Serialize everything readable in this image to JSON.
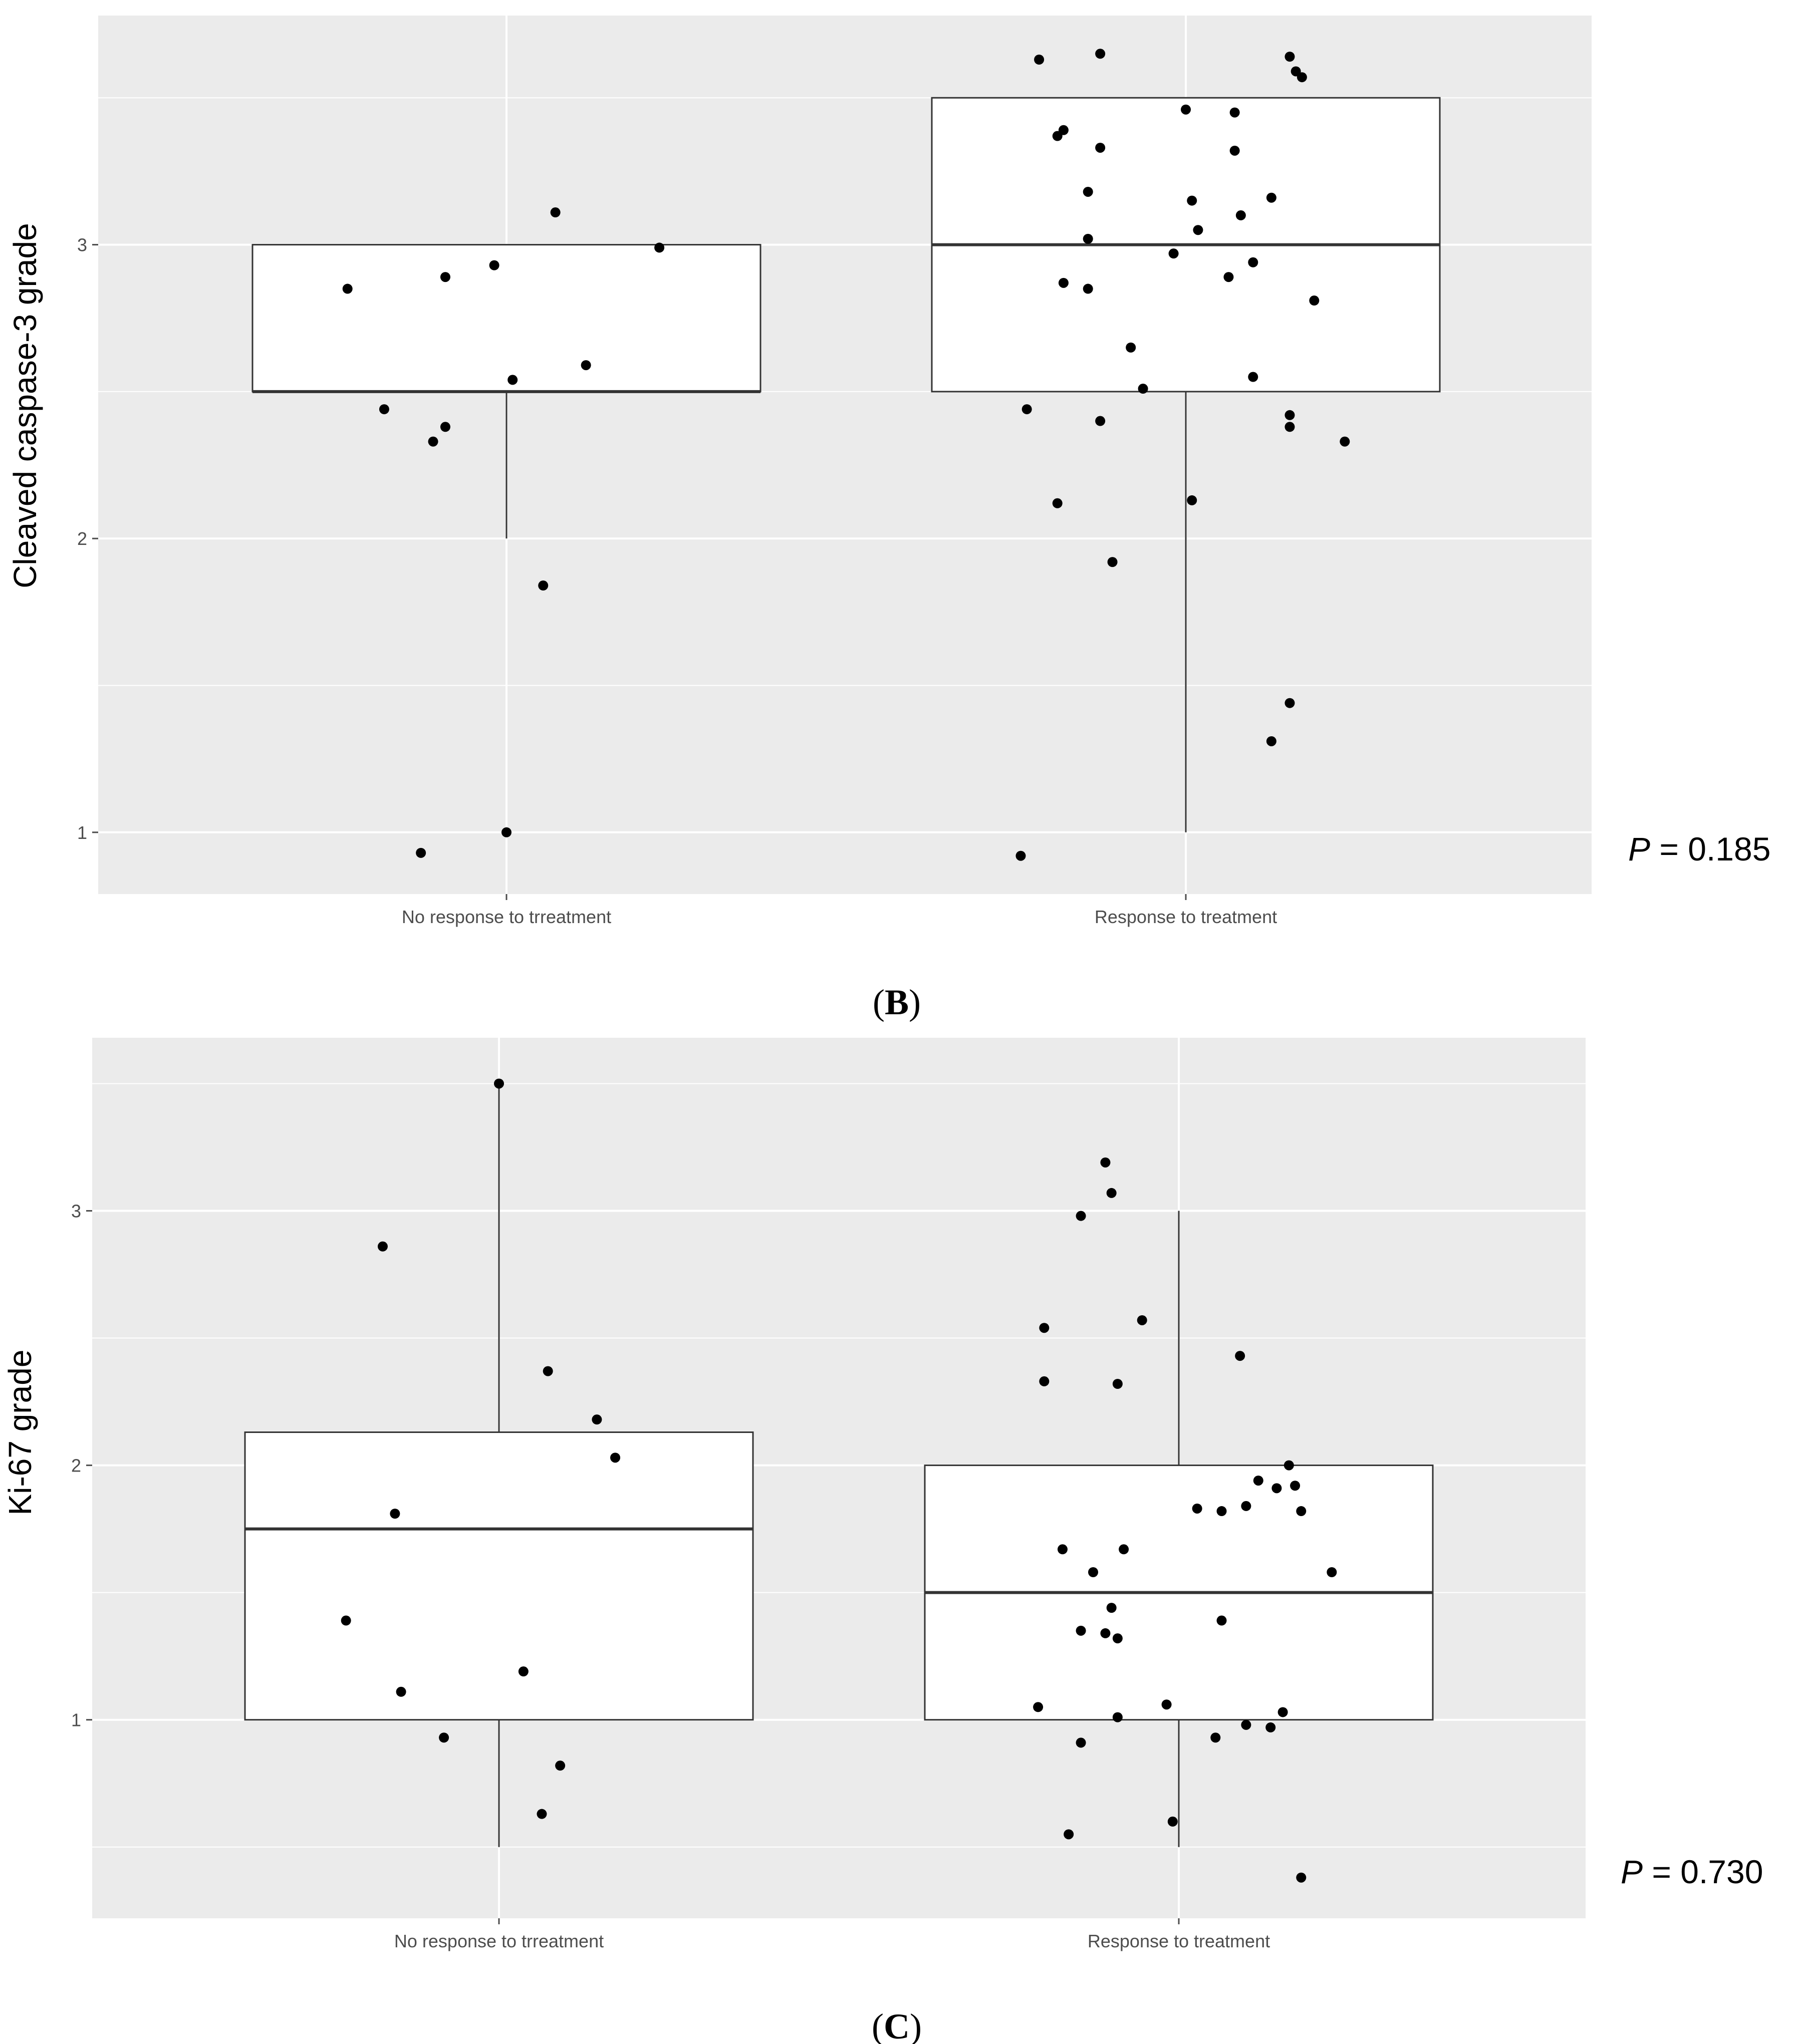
{
  "chart_data": [
    {
      "type": "box",
      "panel_label": "B",
      "ylabel": "Cleaved caspase-3 grade",
      "categories": [
        "No response to trreatment",
        "Response to treatment"
      ],
      "y_ticks": [
        "1",
        "2",
        "3"
      ],
      "ylim": [
        0.79,
        3.78
      ],
      "p_label": "P",
      "p_value": "= 0.185",
      "series": [
        {
          "name": "No response to trreatment",
          "box": {
            "min": 2.0,
            "q1": 2.5,
            "median": 2.5,
            "q3": 3.0,
            "max": 3.0
          },
          "points": [
            {
              "dx": -0.26,
              "y": 2.85
            },
            {
              "dx": -0.1,
              "y": 2.89
            },
            {
              "dx": -0.02,
              "y": 2.93
            },
            {
              "dx": 0.08,
              "y": 3.11
            },
            {
              "dx": 0.25,
              "y": 2.99
            },
            {
              "dx": 0.13,
              "y": 2.59
            },
            {
              "dx": 0.01,
              "y": 2.54
            },
            {
              "dx": -0.2,
              "y": 2.44
            },
            {
              "dx": -0.1,
              "y": 2.38
            },
            {
              "dx": -0.12,
              "y": 2.33
            },
            {
              "dx": 0.06,
              "y": 1.84
            },
            {
              "dx": 0.0,
              "y": 1.0
            },
            {
              "dx": -0.14,
              "y": 0.93
            }
          ]
        },
        {
          "name": "Response to treatment",
          "box": {
            "min": 1.0,
            "q1": 2.5,
            "median": 3.0,
            "q3": 3.5,
            "max": 3.5
          },
          "points": [
            {
              "dx": -0.24,
              "y": 3.63
            },
            {
              "dx": -0.14,
              "y": 3.65
            },
            {
              "dx": 0.17,
              "y": 3.64
            },
            {
              "dx": 0.18,
              "y": 3.59
            },
            {
              "dx": 0.19,
              "y": 3.57
            },
            {
              "dx": 0.0,
              "y": 3.46
            },
            {
              "dx": 0.08,
              "y": 3.45
            },
            {
              "dx": -0.21,
              "y": 3.37
            },
            {
              "dx": -0.2,
              "y": 3.39
            },
            {
              "dx": -0.14,
              "y": 3.33
            },
            {
              "dx": 0.08,
              "y": 3.32
            },
            {
              "dx": -0.16,
              "y": 3.18
            },
            {
              "dx": 0.01,
              "y": 3.15
            },
            {
              "dx": 0.14,
              "y": 3.16
            },
            {
              "dx": 0.09,
              "y": 3.1
            },
            {
              "dx": 0.02,
              "y": 3.05
            },
            {
              "dx": -0.16,
              "y": 3.02
            },
            {
              "dx": -0.02,
              "y": 2.97
            },
            {
              "dx": 0.11,
              "y": 2.94
            },
            {
              "dx": 0.07,
              "y": 2.89
            },
            {
              "dx": -0.2,
              "y": 2.87
            },
            {
              "dx": -0.16,
              "y": 2.85
            },
            {
              "dx": 0.21,
              "y": 2.81
            },
            {
              "dx": -0.09,
              "y": 2.65
            },
            {
              "dx": 0.11,
              "y": 2.55
            },
            {
              "dx": -0.07,
              "y": 2.51
            },
            {
              "dx": -0.26,
              "y": 2.44
            },
            {
              "dx": -0.14,
              "y": 2.4
            },
            {
              "dx": 0.17,
              "y": 2.42
            },
            {
              "dx": 0.17,
              "y": 2.38
            },
            {
              "dx": 0.26,
              "y": 2.33
            },
            {
              "dx": -0.21,
              "y": 2.12
            },
            {
              "dx": 0.01,
              "y": 2.13
            },
            {
              "dx": -0.12,
              "y": 1.92
            },
            {
              "dx": 0.17,
              "y": 1.44
            },
            {
              "dx": 0.14,
              "y": 1.31
            },
            {
              "dx": -0.27,
              "y": 0.92
            }
          ]
        }
      ]
    },
    {
      "type": "box",
      "panel_label": "C",
      "ylabel": "Ki-67 grade",
      "categories": [
        "No response to trreatment",
        "Response to treatment"
      ],
      "y_ticks": [
        "1",
        "2",
        "3"
      ],
      "ylim": [
        0.22,
        3.68
      ],
      "p_label": "P",
      "p_value": "= 0.730",
      "series": [
        {
          "name": "No response to trreatment",
          "box": {
            "min": 0.5,
            "q1": 1.0,
            "median": 1.75,
            "q3": 2.13,
            "max": 3.5
          },
          "points": [
            {
              "dx": 0.0,
              "y": 3.5
            },
            {
              "dx": -0.19,
              "y": 2.86
            },
            {
              "dx": 0.08,
              "y": 2.37
            },
            {
              "dx": 0.16,
              "y": 2.18
            },
            {
              "dx": 0.19,
              "y": 2.03
            },
            {
              "dx": -0.17,
              "y": 1.81
            },
            {
              "dx": -0.25,
              "y": 1.39
            },
            {
              "dx": 0.04,
              "y": 1.19
            },
            {
              "dx": -0.16,
              "y": 1.11
            },
            {
              "dx": -0.09,
              "y": 0.93
            },
            {
              "dx": 0.1,
              "y": 0.82
            },
            {
              "dx": 0.07,
              "y": 0.63
            }
          ]
        },
        {
          "name": "Response to treatment",
          "box": {
            "min": 0.5,
            "q1": 1.0,
            "median": 1.5,
            "q3": 2.0,
            "max": 3.0
          },
          "points": [
            {
              "dx": -0.12,
              "y": 3.19
            },
            {
              "dx": -0.11,
              "y": 3.07
            },
            {
              "dx": -0.16,
              "y": 2.98
            },
            {
              "dx": -0.06,
              "y": 2.57
            },
            {
              "dx": -0.22,
              "y": 2.54
            },
            {
              "dx": 0.1,
              "y": 2.43
            },
            {
              "dx": -0.22,
              "y": 2.33
            },
            {
              "dx": -0.1,
              "y": 2.32
            },
            {
              "dx": 0.18,
              "y": 2.0
            },
            {
              "dx": 0.13,
              "y": 1.94
            },
            {
              "dx": 0.16,
              "y": 1.91
            },
            {
              "dx": 0.19,
              "y": 1.92
            },
            {
              "dx": 0.03,
              "y": 1.83
            },
            {
              "dx": 0.07,
              "y": 1.82
            },
            {
              "dx": 0.11,
              "y": 1.84
            },
            {
              "dx": 0.2,
              "y": 1.82
            },
            {
              "dx": -0.19,
              "y": 1.67
            },
            {
              "dx": -0.09,
              "y": 1.67
            },
            {
              "dx": -0.14,
              "y": 1.58
            },
            {
              "dx": 0.25,
              "y": 1.58
            },
            {
              "dx": -0.11,
              "y": 1.44
            },
            {
              "dx": 0.07,
              "y": 1.39
            },
            {
              "dx": -0.16,
              "y": 1.35
            },
            {
              "dx": -0.12,
              "y": 1.34
            },
            {
              "dx": -0.1,
              "y": 1.32
            },
            {
              "dx": -0.23,
              "y": 1.05
            },
            {
              "dx": -0.02,
              "y": 1.06
            },
            {
              "dx": 0.17,
              "y": 1.03
            },
            {
              "dx": -0.1,
              "y": 1.01
            },
            {
              "dx": 0.11,
              "y": 0.98
            },
            {
              "dx": 0.15,
              "y": 0.97
            },
            {
              "dx": 0.06,
              "y": 0.93
            },
            {
              "dx": -0.16,
              "y": 0.91
            },
            {
              "dx": -0.01,
              "y": 0.6
            },
            {
              "dx": -0.18,
              "y": 0.55
            },
            {
              "dx": 0.2,
              "y": 0.38
            }
          ]
        }
      ]
    }
  ]
}
